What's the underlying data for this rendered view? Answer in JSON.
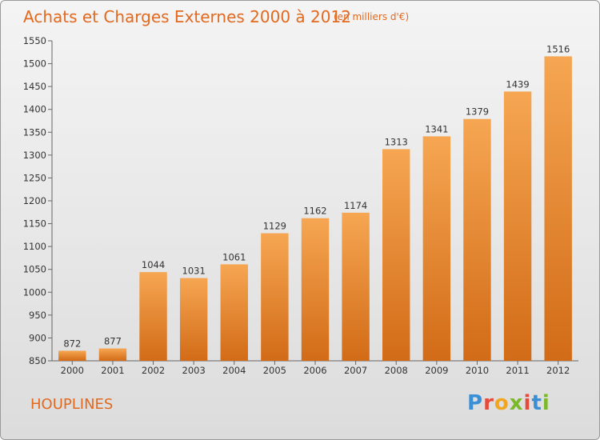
{
  "title": "Achats et Charges Externes 2000 à 2012",
  "subtitle": "(en milliers d'€)",
  "commune": "HOUPLINES",
  "logo": {
    "text": "Proxiti",
    "letters": [
      "P",
      "r",
      "o",
      "x",
      "i",
      "t",
      "i"
    ],
    "colors": [
      "#3b8fd6",
      "#e84a3a",
      "#f2a51f",
      "#7cb929",
      "#e84a3a",
      "#3b8fd6",
      "#7cb929"
    ]
  },
  "colors": {
    "bar_light": "#f6a652",
    "bar_dark": "#d26b17",
    "title": "#e2691f"
  },
  "chart_data": {
    "type": "bar",
    "categories": [
      "2000",
      "2001",
      "2002",
      "2003",
      "2004",
      "2005",
      "2006",
      "2007",
      "2008",
      "2009",
      "2010",
      "2011",
      "2012"
    ],
    "values": [
      872,
      877,
      1044,
      1031,
      1061,
      1129,
      1162,
      1174,
      1313,
      1341,
      1379,
      1439,
      1516
    ],
    "title": "Achats et Charges Externes 2000 à 2012",
    "ylim": [
      850,
      1550
    ],
    "yticks": [
      850,
      900,
      950,
      1000,
      1050,
      1100,
      1150,
      1200,
      1250,
      1300,
      1350,
      1400,
      1450,
      1500,
      1550
    ],
    "grid": false
  }
}
